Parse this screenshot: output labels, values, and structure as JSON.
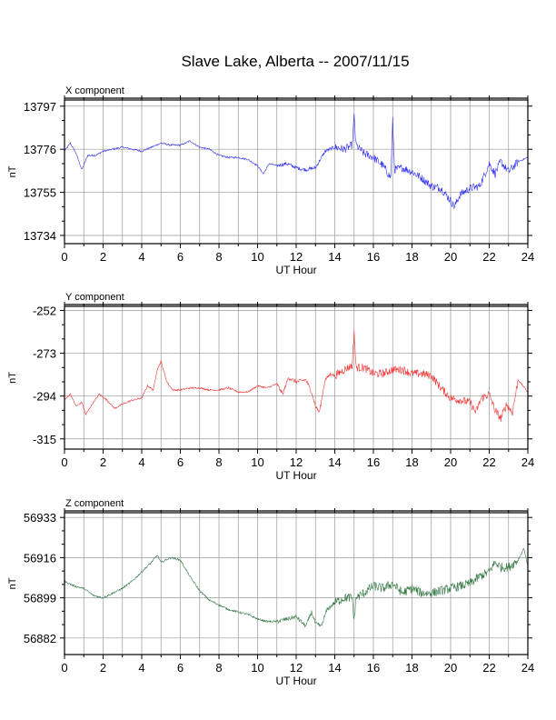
{
  "title": "Slave Lake, Alberta -- 2007/11/15",
  "chart_data": [
    {
      "type": "line",
      "title": "X component",
      "xlabel": "UT Hour",
      "ylabel": "nT",
      "xlim": [
        0,
        24
      ],
      "ylim": [
        13730,
        13800
      ],
      "x_ticks": [
        0,
        2,
        4,
        6,
        8,
        10,
        12,
        14,
        16,
        18,
        20,
        22,
        24
      ],
      "y_ticks": [
        13734,
        13755,
        13776,
        13797
      ],
      "grid": true,
      "color": "#3333ee",
      "series": [
        {
          "x": [
            0,
            0.3,
            0.6,
            0.9,
            1.2,
            1.6,
            2.0,
            2.5,
            3.0,
            3.5,
            4.0,
            4.5,
            5.0,
            5.5,
            6.0,
            6.5,
            7.0,
            7.5,
            8.0,
            8.5,
            9.0,
            9.5,
            10.0,
            10.3,
            10.6,
            11.0,
            11.5,
            12.0,
            12.5,
            13.0,
            13.5,
            14.0,
            14.5,
            14.9,
            15.0,
            15.1,
            15.5,
            16.0,
            16.5,
            16.9,
            17.0,
            17.1,
            17.5,
            18.0,
            18.5,
            19.0,
            19.5,
            20.0,
            20.2,
            20.5,
            21.0,
            21.5,
            22.0,
            22.3,
            22.6,
            23.0,
            23.5,
            24.0
          ],
          "y": [
            13775,
            13779,
            13774,
            13766,
            13773,
            13773,
            13775,
            13776,
            13777,
            13776,
            13775,
            13777,
            13779,
            13778,
            13778,
            13780,
            13777,
            13776,
            13773,
            13772,
            13772,
            13771,
            13768,
            13764,
            13769,
            13768,
            13769,
            13767,
            13766,
            13767,
            13775,
            13777,
            13776,
            13778,
            13792,
            13778,
            13774,
            13772,
            13768,
            13762,
            13790,
            13766,
            13767,
            13765,
            13762,
            13758,
            13757,
            13751,
            13748,
            13754,
            13757,
            13758,
            13769,
            13764,
            13770,
            13765,
            13770,
            13772
          ]
        }
      ]
    },
    {
      "type": "line",
      "title": "Y component",
      "xlabel": "UT Hour",
      "ylabel": "nT",
      "xlim": [
        0,
        24
      ],
      "ylim": [
        -320,
        -250
      ],
      "x_ticks": [
        0,
        2,
        4,
        6,
        8,
        10,
        12,
        14,
        16,
        18,
        20,
        22,
        24
      ],
      "y_ticks": [
        -252,
        -273,
        -294,
        -315
      ],
      "grid": true,
      "color": "#ee3333",
      "series": [
        {
          "x": [
            0,
            0.3,
            0.6,
            0.9,
            1.1,
            1.5,
            1.8,
            2.2,
            2.6,
            3.0,
            3.5,
            4.0,
            4.3,
            4.6,
            4.8,
            5.0,
            5.3,
            5.6,
            6.0,
            6.5,
            7.0,
            7.5,
            8.0,
            8.5,
            9.0,
            9.5,
            10.0,
            10.5,
            11.0,
            11.3,
            11.6,
            12.0,
            12.5,
            12.8,
            13.0,
            13.2,
            13.5,
            13.8,
            14.0,
            14.5,
            14.9,
            15.0,
            15.1,
            15.5,
            16.0,
            16.5,
            17.0,
            17.5,
            18.0,
            18.5,
            19.0,
            19.5,
            20.0,
            20.5,
            21.0,
            21.3,
            21.6,
            22.0,
            22.3,
            22.6,
            22.9,
            23.2,
            23.5,
            24.0
          ],
          "y": [
            -296,
            -293,
            -299,
            -297,
            -303,
            -297,
            -293,
            -296,
            -300,
            -298,
            -296,
            -295,
            -289,
            -291,
            -281,
            -277,
            -287,
            -291,
            -291,
            -290,
            -290,
            -291,
            -291,
            -290,
            -292,
            -292,
            -289,
            -290,
            -288,
            -293,
            -285,
            -287,
            -286,
            -292,
            -299,
            -302,
            -286,
            -283,
            -284,
            -281,
            -279,
            -262,
            -280,
            -280,
            -283,
            -283,
            -281,
            -281,
            -283,
            -283,
            -284,
            -290,
            -295,
            -296,
            -297,
            -302,
            -295,
            -293,
            -301,
            -305,
            -298,
            -302,
            -286,
            -292
          ]
        }
      ]
    },
    {
      "type": "line",
      "title": "Z component",
      "xlabel": "UT Hour",
      "ylabel": "nT",
      "xlim": [
        0,
        24
      ],
      "ylim": [
        56875,
        56935
      ],
      "x_ticks": [
        0,
        2,
        4,
        6,
        8,
        10,
        12,
        14,
        16,
        18,
        20,
        22,
        24
      ],
      "y_ticks": [
        56933,
        56916,
        56899,
        56882
      ],
      "grid": true,
      "color": "#337744",
      "series": [
        {
          "x": [
            0,
            0.5,
            1.0,
            1.5,
            2.0,
            2.5,
            3.0,
            3.5,
            4.0,
            4.5,
            4.8,
            5.0,
            5.5,
            6.0,
            6.5,
            7.0,
            7.5,
            8.0,
            8.5,
            9.0,
            9.5,
            10.0,
            10.5,
            11.0,
            11.5,
            12.0,
            12.5,
            12.8,
            13.0,
            13.3,
            13.6,
            14.0,
            14.5,
            14.9,
            15.0,
            15.1,
            15.5,
            16.0,
            16.5,
            17.0,
            17.5,
            18.0,
            18.5,
            19.0,
            19.5,
            20.0,
            20.5,
            21.0,
            21.5,
            22.0,
            22.3,
            22.6,
            23.0,
            23.5,
            23.8,
            24.0
          ],
          "y": [
            56906,
            56904,
            56903,
            56900,
            56899,
            56901,
            56903,
            56906,
            56910,
            56914,
            56917,
            56914,
            56916,
            56915,
            56908,
            56902,
            56898,
            56896,
            56894,
            56893,
            56892,
            56890,
            56889,
            56889,
            56890,
            56891,
            56887,
            56893,
            56888,
            56887,
            56894,
            56897,
            56899,
            56899,
            56889,
            56899,
            56901,
            56904,
            56903,
            56905,
            56901,
            56903,
            56901,
            56901,
            56902,
            56903,
            56904,
            56905,
            56908,
            56910,
            56914,
            56912,
            56912,
            56915,
            56920,
            56912
          ]
        }
      ]
    }
  ]
}
